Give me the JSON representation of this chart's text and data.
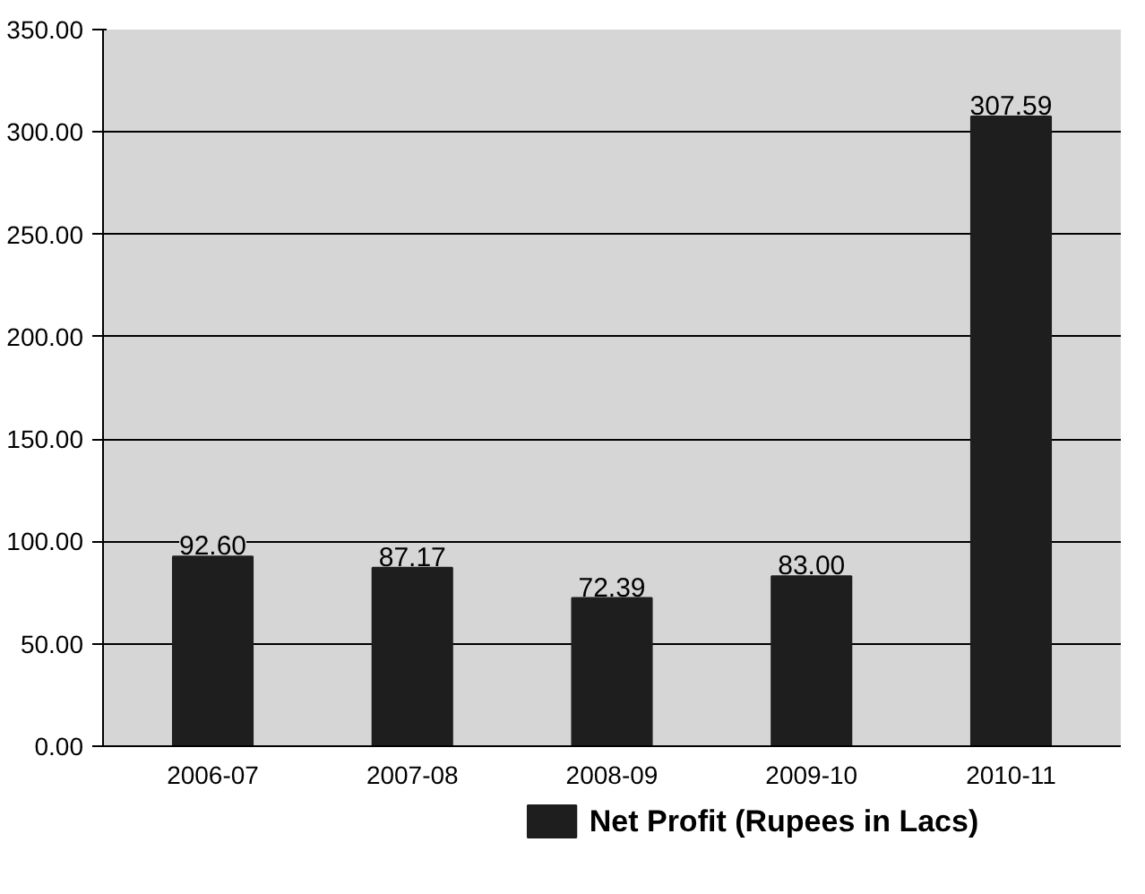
{
  "chart_data": {
    "type": "bar",
    "categories": [
      "2006-07",
      "2007-08",
      "2008-09",
      "2009-10",
      "2010-11"
    ],
    "series": [
      {
        "name": "Net Profit (Rupees in Lacs)",
        "color": "#1e1e1e",
        "values": [
          92.6,
          87.17,
          72.39,
          83.0,
          307.59
        ],
        "value_labels": [
          "92.60",
          "87.17",
          "72.39",
          "83.00",
          "307.59"
        ]
      }
    ],
    "ylim": [
      0,
      350
    ],
    "yticks": [
      {
        "value": 0,
        "label": "0.00"
      },
      {
        "value": 50,
        "label": "50.00"
      },
      {
        "value": 100,
        "label": "100.00"
      },
      {
        "value": 150,
        "label": "150.00"
      },
      {
        "value": 200,
        "label": "200.00"
      },
      {
        "value": 250,
        "label": "250.00"
      },
      {
        "value": 300,
        "label": "300.00"
      },
      {
        "value": 350,
        "label": "350.00"
      }
    ],
    "grid": "y",
    "legend": "bottom"
  }
}
